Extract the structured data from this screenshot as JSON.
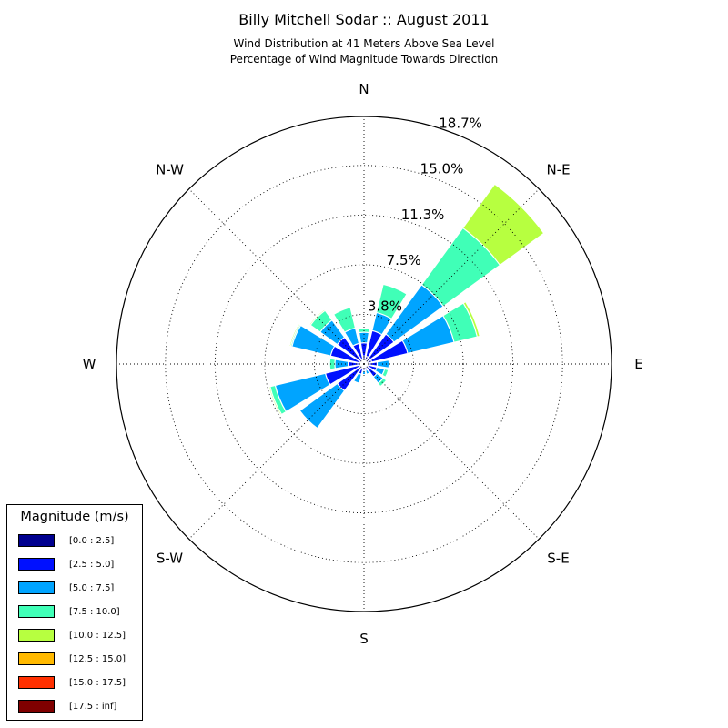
{
  "chart_data": {
    "type": "windrose",
    "title": "Billy Mitchell Sodar :: August 2011",
    "subtitle": [
      "Wind Distribution at 41 Meters Above Sea Level",
      "Percentage of Wind Magnitude Towards Direction"
    ],
    "directions": [
      "N",
      "N-E",
      "E",
      "S-E",
      "S",
      "S-W",
      "W",
      "N-W"
    ],
    "radial_ticks": [
      "3.8%",
      "7.5%",
      "11.3%",
      "15.0%",
      "18.7%"
    ],
    "radial_tick_values": [
      3.75,
      7.5,
      11.25,
      15.0,
      18.7
    ],
    "rmax": 18.7,
    "grid": true,
    "legend": {
      "title": "Magnitude (m/s)",
      "placement": "lower-left",
      "entries": [
        "[0.0 : 2.5]",
        "[2.5 : 5.0]",
        "[5.0 : 7.5]",
        "[7.5 : 10.0]",
        "[10.0 : 12.5]",
        "[12.5 : 15.0]",
        "[15.0 : 17.5]",
        "[17.5 : inf]"
      ],
      "colors": [
        "#00008f",
        "#0010ff",
        "#00a4ff",
        "#40ffb7",
        "#b7ff40",
        "#ffb900",
        "#ff3000",
        "#800000"
      ]
    },
    "sector_angles_deg": [
      0,
      22.5,
      45,
      67.5,
      90,
      112.5,
      135,
      157.5,
      180,
      202.5,
      225,
      247.5,
      270,
      292.5,
      315,
      337.5
    ],
    "cumulative_percent_by_sector": [
      [
        0.6,
        1.6,
        2.4,
        2.7,
        2.7,
        2.7,
        2.7,
        2.7
      ],
      [
        0.6,
        2.6,
        4.0,
        6.2,
        6.2,
        6.2,
        6.2,
        6.2
      ],
      [
        0.6,
        2.8,
        7.4,
        12.7,
        16.8,
        16.8,
        16.8,
        16.8
      ],
      [
        0.6,
        3.4,
        7.0,
        8.8,
        9.0,
        9.0,
        9.0,
        9.0
      ],
      [
        0.4,
        1.0,
        1.9,
        1.95,
        1.95,
        1.95,
        1.95,
        1.95
      ],
      [
        0.3,
        1.0,
        1.6,
        1.9,
        1.9,
        1.9,
        1.9,
        1.9
      ],
      [
        0.3,
        1.2,
        1.8,
        2.1,
        2.1,
        2.1,
        2.1,
        2.1
      ],
      [
        0.2,
        0.5,
        0.8,
        0.8,
        0.8,
        0.8,
        0.8,
        0.8
      ],
      [
        0.2,
        0.5,
        0.8,
        0.8,
        0.8,
        0.8,
        0.8,
        0.8
      ],
      [
        0.3,
        0.8,
        1.5,
        1.5,
        1.5,
        1.5,
        1.5,
        1.5
      ],
      [
        0.3,
        2.5,
        6.0,
        6.0,
        6.0,
        6.0,
        6.0,
        6.0
      ],
      [
        0.3,
        3.0,
        6.9,
        7.3,
        7.4,
        7.4,
        7.4,
        7.4
      ],
      [
        0.3,
        1.2,
        2.2,
        2.6,
        2.6,
        2.6,
        2.6,
        2.6
      ],
      [
        0.3,
        2.6,
        5.6,
        5.7,
        5.8,
        5.8,
        5.8,
        5.8
      ],
      [
        0.3,
        2.5,
        4.1,
        5.0,
        5.1,
        5.1,
        5.1,
        5.1
      ],
      [
        0.3,
        1.6,
        2.8,
        4.4,
        4.4,
        4.4,
        4.4,
        4.4
      ]
    ]
  }
}
